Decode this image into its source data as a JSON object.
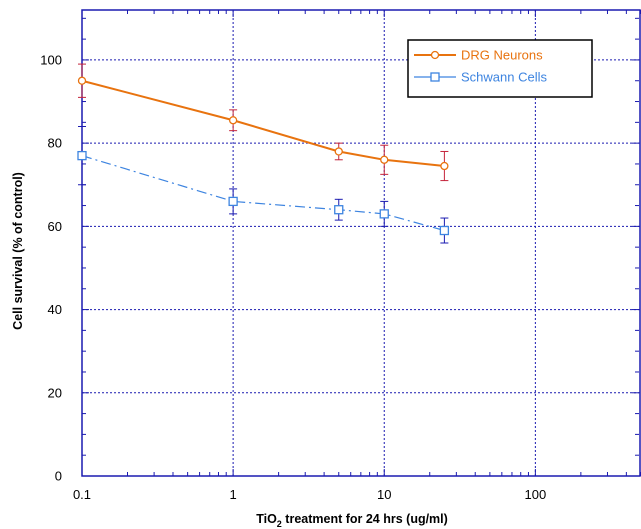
{
  "chart_data": {
    "type": "line",
    "title": "",
    "xlabel_prefix": "TiO",
    "xlabel_subscript": "2",
    "xlabel_suffix": " treatment for 24 hrs (ug/ml)",
    "ylabel": "Cell survival (% of control)",
    "x_scale": "log",
    "xlim": [
      0.1,
      500
    ],
    "ylim": [
      0,
      112
    ],
    "x_ticks": [
      0.1,
      1,
      10,
      100
    ],
    "x_tick_labels": [
      "0.1",
      "1",
      "10",
      "100"
    ],
    "y_ticks": [
      0,
      20,
      40,
      60,
      80,
      100
    ],
    "y_tick_labels": [
      "0",
      "20",
      "40",
      "60",
      "80",
      "100"
    ],
    "grid": true,
    "legend_position": "top-right",
    "series": [
      {
        "name": "DRG Neurons",
        "color": "#e8730f",
        "marker": "circle",
        "line_style": "solid",
        "x": [
          0.1,
          1,
          5,
          10,
          25
        ],
        "y": [
          95,
          85.5,
          78,
          76,
          74.5
        ],
        "error": [
          4,
          2.5,
          2,
          3.5,
          3.5
        ]
      },
      {
        "name": "Schwann Cells",
        "color": "#3d84e0",
        "marker": "square",
        "line_style": "dashed",
        "x": [
          0.1,
          1,
          5,
          10,
          25
        ],
        "y": [
          77,
          66,
          64,
          63,
          59
        ],
        "error": [
          7,
          3,
          2.5,
          3,
          3
        ]
      }
    ]
  }
}
